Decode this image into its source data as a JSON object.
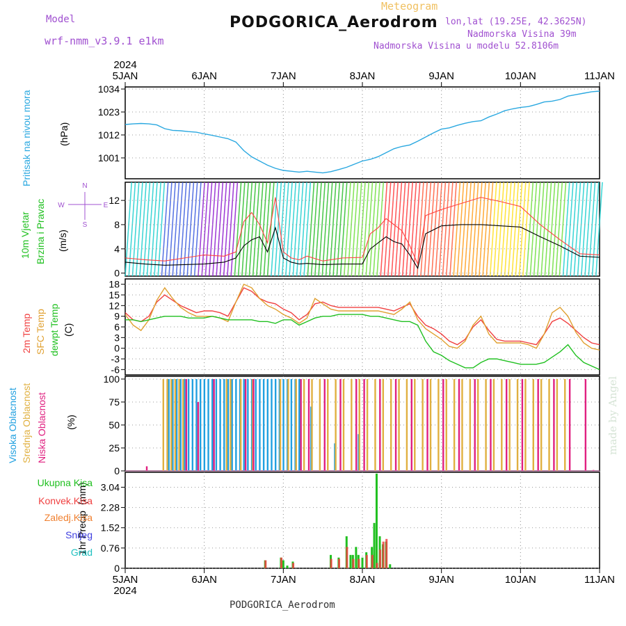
{
  "header": {
    "title": "PODGORICA_Aerodrom",
    "model_label": "Model",
    "model_value": "wrf-nmm_v3.9.1 e1km",
    "meteogram_label": "Meteogram",
    "lonlat": "lon,lat (19.25E, 42.3625N)",
    "nadmorska_visina": "Nadmorska Visina 39m",
    "nadmorska_visina_model": "Nadmorska Visina u modelu 52.8106m"
  },
  "footer": {
    "station": "PODGORICA_Aerodrom"
  },
  "signature": "made by Angel",
  "colors": {
    "pressure": "#2aa8e0",
    "wind_speed": "#000000",
    "wind_gust": "#ff4040",
    "temp2m": "#f04040",
    "sfc_temp": "#e0a030",
    "dewpoint": "#20c020",
    "visoka": "#20a0e0",
    "srednja": "#e0b040",
    "niska": "#e02080",
    "ukupna": "#20c020",
    "konvek": "#f04040",
    "zaledj": "#f08030",
    "snijeg": "#4040e0",
    "grad": "#20c0c0"
  },
  "x_axis": {
    "year": "2024",
    "ticks": [
      "5JAN",
      "6JAN",
      "7JAN",
      "8JAN",
      "9JAN",
      "10JAN",
      "11JAN"
    ]
  },
  "chart_data": [
    {
      "type": "line",
      "panel": "pressure",
      "ylabel_name": "Pritisak na nivou mora",
      "ylabel_unit": "(hPa)",
      "ylim": [
        991,
        1035
      ],
      "yticks": [
        1001,
        1012,
        1023,
        1034
      ],
      "grid": true,
      "x_days": [
        0.0,
        0.1,
        0.2,
        0.3,
        0.4,
        0.5,
        0.6,
        0.7,
        0.8,
        0.9,
        1.0,
        1.1,
        1.2,
        1.3,
        1.4,
        1.5,
        1.6,
        1.7,
        1.8,
        1.9,
        2.0,
        2.1,
        2.2,
        2.3,
        2.4,
        2.5,
        2.6,
        2.7,
        2.8,
        2.9,
        3.0,
        3.1,
        3.2,
        3.3,
        3.4,
        3.5,
        3.6,
        3.7,
        3.8,
        3.9,
        4.0,
        4.1,
        4.2,
        4.3,
        4.4,
        4.5,
        4.6,
        4.7,
        4.8,
        4.9,
        5.0,
        5.1,
        5.2,
        5.3,
        5.4,
        5.5,
        5.6,
        5.7,
        5.8,
        5.9,
        6.0
      ],
      "series": [
        {
          "values": [
            1017,
            1017.3,
            1017.5,
            1017.3,
            1016.8,
            1015,
            1014.2,
            1014,
            1013.6,
            1013.3,
            1012.5,
            1011.8,
            1011,
            1010.2,
            1008.6,
            1004.5,
            1001.5,
            999.5,
            997.5,
            996,
            995,
            994.6,
            994.2,
            994.6,
            994.2,
            993.8,
            994.4,
            995.4,
            996.5,
            998,
            999.5,
            1000.3,
            1001.6,
            1003.5,
            1005.4,
            1006.5,
            1007.2,
            1009,
            1011,
            1013,
            1014.8,
            1015.4,
            1016.6,
            1017.6,
            1018.4,
            1018.8,
            1020.6,
            1022,
            1023.6,
            1024.5,
            1025.2,
            1025.6,
            1026.6,
            1027.8,
            1028.2,
            1029,
            1030.6,
            1031.3,
            1032,
            1032.7,
            1033
          ]
        }
      ]
    },
    {
      "type": "line",
      "panel": "wind",
      "ylabel_name": "10m Vjetar",
      "ylabel_name2": "Brzina i Pravac",
      "ylabel_unit": "(m/s)",
      "compass": {
        "n": "N",
        "s": "S",
        "e": "E",
        "w": "W"
      },
      "ylim": [
        -0.5,
        15
      ],
      "yticks": [
        0,
        4,
        8,
        12
      ],
      "grid": true,
      "x_days": [
        0.0,
        0.25,
        0.5,
        0.75,
        1.0,
        1.25,
        1.4,
        1.5,
        1.6,
        1.7,
        1.8,
        1.9,
        2.0,
        2.1,
        2.2,
        2.3,
        2.5,
        2.75,
        3.0,
        3.1,
        3.2,
        3.3,
        3.4,
        3.5,
        3.6,
        3.7,
        3.8,
        4.0,
        4.25,
        4.5,
        4.75,
        5.0,
        5.25,
        5.5,
        5.75,
        6.0
      ],
      "series": [
        {
          "name": "speed",
          "values": [
            1.8,
            1.5,
            1.3,
            1.4,
            1.5,
            1.8,
            2.5,
            4.5,
            5.5,
            6.0,
            3.5,
            7.5,
            2.5,
            1.8,
            1.5,
            1.6,
            1.4,
            1.5,
            1.5,
            4.0,
            5.0,
            6.0,
            5.2,
            4.8,
            3.0,
            0.8,
            6.5,
            7.8,
            8.0,
            8.0,
            7.8,
            7.6,
            6.0,
            4.5,
            2.8,
            2.6
          ]
        },
        {
          "name": "gust",
          "values": [
            2.5,
            2.2,
            2.0,
            2.5,
            3.0,
            2.8,
            3.5,
            8.5,
            10.0,
            8.0,
            5.0,
            12.5,
            3.5,
            2.5,
            2.2,
            2.8,
            2.0,
            2.5,
            2.6,
            6.5,
            7.5,
            9.0,
            8.0,
            7.0,
            4.5,
            1.5,
            9.5,
            10.5,
            11.5,
            12.5,
            11.8,
            11.0,
            8.0,
            5.5,
            3.2,
            3.0
          ]
        }
      ],
      "direction_band_colors": [
        "#20d0d0",
        "#4060e0",
        "#9020d0",
        "#30c030",
        "#20d0d0",
        "#30c030",
        "#70e040",
        "#ff4040",
        "#ff6040",
        "#ffa020",
        "#ffe020",
        "#70e040",
        "#20d0d0"
      ]
    },
    {
      "type": "line",
      "panel": "temperature",
      "ylabel_name": "2m Temp",
      "ylabel_name2": "SFC Temp",
      "ylabel_name3": "dewpt Temp",
      "ylabel_unit": "(C)",
      "ylim": [
        -7.5,
        19.5
      ],
      "yticks": [
        -6,
        -3,
        0,
        3,
        6,
        9,
        12,
        15,
        18
      ],
      "grid": true,
      "x_days": [
        0.0,
        0.1,
        0.2,
        0.3,
        0.4,
        0.5,
        0.6,
        0.7,
        0.8,
        0.9,
        1.0,
        1.1,
        1.2,
        1.3,
        1.4,
        1.5,
        1.6,
        1.7,
        1.8,
        1.9,
        2.0,
        2.1,
        2.2,
        2.3,
        2.4,
        2.5,
        2.6,
        2.7,
        2.8,
        2.9,
        3.0,
        3.1,
        3.2,
        3.3,
        3.4,
        3.5,
        3.6,
        3.7,
        3.8,
        3.9,
        4.0,
        4.1,
        4.2,
        4.3,
        4.4,
        4.5,
        4.6,
        4.7,
        4.8,
        4.9,
        5.0,
        5.1,
        5.2,
        5.3,
        5.4,
        5.5,
        5.6,
        5.7,
        5.8,
        5.9,
        6.0
      ],
      "series": [
        {
          "name": "2m Temp",
          "values": [
            10,
            8,
            7.5,
            9,
            13,
            15,
            13.5,
            12,
            11,
            10,
            10.5,
            10.5,
            10,
            9,
            13,
            17,
            16,
            14,
            13,
            12.5,
            11,
            10,
            8,
            9.5,
            12.5,
            13,
            12,
            11.5,
            11.5,
            11.5,
            11.5,
            11.5,
            11.5,
            11,
            10.5,
            11.5,
            12.5,
            9,
            6.5,
            5.5,
            4,
            2,
            1,
            2.5,
            6,
            8,
            5,
            2.5,
            2,
            2,
            2,
            1.5,
            1,
            4,
            7.5,
            8.5,
            7,
            5,
            3,
            1.5,
            1
          ]
        },
        {
          "name": "SFC Temp",
          "values": [
            9.5,
            6.5,
            5,
            8,
            13.5,
            17,
            14,
            11.5,
            10,
            9,
            9,
            9,
            8.5,
            7.5,
            13,
            18,
            17,
            14,
            12,
            11,
            9.5,
            8.5,
            7,
            8.5,
            14,
            12.5,
            11,
            10.5,
            10.5,
            10.5,
            10.5,
            10.5,
            10.5,
            10,
            9.5,
            11,
            13,
            8,
            5.5,
            4,
            2.5,
            0.5,
            0,
            2,
            6.5,
            9,
            4,
            1.5,
            1.5,
            1.5,
            1.5,
            1,
            0,
            4,
            10,
            11.5,
            9,
            4.5,
            1.5,
            0,
            -0.5
          ]
        },
        {
          "name": "dewpt Temp",
          "values": [
            8,
            8,
            7.5,
            8,
            8.5,
            9,
            9,
            9,
            8.5,
            8.5,
            8.5,
            9,
            8.5,
            8,
            8,
            8,
            8,
            7.5,
            7.5,
            7,
            8,
            8,
            6.5,
            7.5,
            8.5,
            9,
            9,
            9.5,
            9.5,
            9.5,
            9.5,
            9,
            9,
            8.5,
            8,
            7.5,
            7.5,
            6.5,
            2,
            -1,
            -2,
            -3.5,
            -4.5,
            -5.5,
            -5.5,
            -4,
            -3,
            -3,
            -3.5,
            -4,
            -4.5,
            -4.5,
            -4.5,
            -4,
            -2.5,
            -1,
            1,
            -2,
            -4,
            -5,
            -6
          ]
        }
      ]
    },
    {
      "type": "bar",
      "panel": "cloud",
      "ylabel_name": "Visoka Oblacnost",
      "ylabel_name2": "Srednja Oblacnost",
      "ylabel_name3": "Niska Oblacnost",
      "ylabel_unit": "(%)",
      "ylim": [
        0,
        103
      ],
      "yticks": [
        0,
        25,
        50,
        75,
        100
      ],
      "grid": true,
      "series": [
        {
          "name": "Visoka",
          "x_days": [
            0.55,
            0.6,
            0.65,
            0.7,
            0.75,
            0.8,
            0.85,
            0.9,
            0.95,
            1.0,
            1.05,
            1.1,
            1.15,
            1.2,
            1.25,
            1.3,
            1.35,
            1.4,
            1.45,
            1.5,
            1.55,
            1.6,
            1.65,
            1.7,
            1.75,
            1.8,
            1.85,
            1.9,
            1.95,
            2.0,
            2.05,
            2.1,
            2.15,
            2.2,
            2.35,
            2.65,
            2.95
          ],
          "values": [
            100,
            100,
            100,
            100,
            100,
            100,
            100,
            100,
            100,
            100,
            100,
            100,
            100,
            100,
            100,
            100,
            100,
            100,
            100,
            100,
            100,
            100,
            100,
            100,
            100,
            100,
            100,
            100,
            100,
            100,
            100,
            100,
            100,
            100,
            70,
            30,
            40
          ]
        },
        {
          "name": "Srednja",
          "x_days": [
            0.47,
            0.52,
            0.57,
            0.62,
            0.67,
            0.72,
            1.27,
            1.32,
            1.45,
            1.6,
            1.95,
            2.05,
            2.15,
            2.25,
            2.35,
            2.45,
            2.55,
            2.65,
            2.75,
            2.85,
            2.95,
            3.05,
            3.15,
            3.25,
            3.35,
            3.45,
            3.55,
            3.65,
            3.75,
            3.85,
            3.95,
            4.05,
            4.15,
            4.25,
            4.35,
            4.45,
            4.55,
            4.65,
            4.75,
            4.85,
            4.95,
            5.05,
            5.15,
            5.25,
            5.35,
            5.45,
            5.55
          ],
          "values": [
            100,
            100,
            100,
            100,
            100,
            100,
            100,
            100,
            100,
            100,
            100,
            100,
            100,
            100,
            100,
            100,
            100,
            100,
            100,
            100,
            100,
            100,
            100,
            100,
            100,
            100,
            100,
            100,
            100,
            100,
            100,
            100,
            100,
            100,
            100,
            100,
            100,
            100,
            100,
            100,
            100,
            100,
            100,
            100,
            100,
            100,
            100
          ]
        },
        {
          "name": "Niska",
          "x_days": [
            0.25,
            0.75,
            0.9,
            1.1,
            1.5,
            1.6,
            2.2,
            2.3,
            2.5,
            2.7,
            2.9,
            3.0,
            3.2,
            3.4,
            3.6,
            3.8,
            4.0,
            4.2,
            4.4,
            4.6,
            4.8,
            5.0,
            5.2,
            5.4,
            5.6,
            5.8,
            5.9
          ],
          "values": [
            5,
            100,
            75,
            100,
            100,
            100,
            100,
            100,
            100,
            100,
            100,
            100,
            100,
            100,
            100,
            100,
            100,
            100,
            100,
            100,
            100,
            100,
            100,
            100,
            100,
            100,
            1
          ]
        }
      ]
    },
    {
      "type": "bar",
      "panel": "precip",
      "ylabel_name": "1hr Precip",
      "ylabel_unit": "(mm)",
      "legend": [
        "Ukupna Kisa",
        "Konvek.Kisa",
        "Zaledj.Kisa",
        "Snijeg",
        "Grad"
      ],
      "ylim": [
        0,
        3.6
      ],
      "yticks": [
        0,
        0.76,
        1.52,
        2.28,
        3.04
      ],
      "grid": true,
      "series": [
        {
          "name": "Ukupna Kisa",
          "x_days": [
            1.77,
            1.97,
            2.0,
            2.05,
            2.12,
            2.6,
            2.7,
            2.8,
            2.85,
            2.88,
            2.92,
            2.95,
            3.0,
            3.05,
            3.12,
            3.15,
            3.18,
            3.22,
            3.26,
            3.3,
            3.35
          ],
          "values": [
            0.3,
            0.4,
            0.3,
            0.1,
            0.25,
            0.5,
            0.4,
            1.2,
            0.5,
            0.5,
            0.8,
            0.5,
            0.4,
            0.6,
            0.8,
            1.7,
            3.55,
            1.2,
            0.9,
            1.0,
            0.15
          ]
        },
        {
          "name": "Konvek.Kisa",
          "x_days": [
            1.77,
            1.97,
            2.12,
            2.6,
            2.7,
            2.8,
            2.88,
            2.95,
            3.05,
            3.12,
            3.18,
            3.22,
            3.26,
            3.3
          ],
          "values": [
            0.3,
            0.4,
            0.2,
            0.35,
            0.35,
            0.8,
            0.35,
            0.35,
            0.5,
            0.5,
            0.2,
            0.7,
            1.0,
            1.1
          ]
        }
      ]
    }
  ]
}
